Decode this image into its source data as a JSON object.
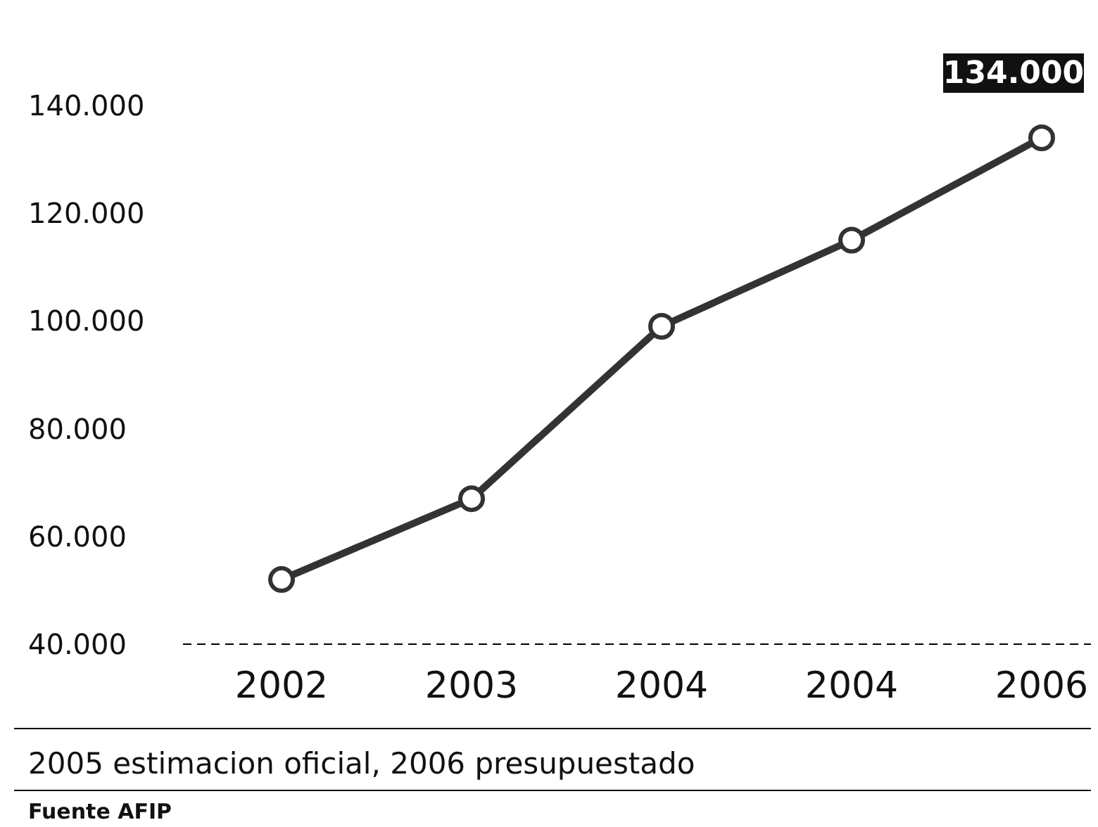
{
  "chart_data": {
    "type": "line",
    "categories": [
      "2002",
      "2003",
      "2004",
      "2004",
      "2006"
    ],
    "series": [
      {
        "color": "#333333",
        "values": [
          52000,
          67000,
          99000,
          115000,
          134000
        ],
        "value_labels": [
          null,
          null,
          null,
          null,
          "134.000"
        ]
      }
    ],
    "ylim": [
      40000,
      140000
    ],
    "yticks": [
      {
        "value": 40000,
        "label": "40.000"
      },
      {
        "value": 60000,
        "label": "60.000"
      },
      {
        "value": 80000,
        "label": "80.000"
      },
      {
        "value": 100000,
        "label": "100.000"
      },
      {
        "value": 120000,
        "label": "120.000"
      },
      {
        "value": 140000,
        "label": "140.000"
      }
    ],
    "marker": "circle",
    "line_style": "solid",
    "grid": false,
    "annotations": [
      "2005 estimacion oficial, 2006 presupuestado",
      "Fuente AFIP"
    ]
  }
}
